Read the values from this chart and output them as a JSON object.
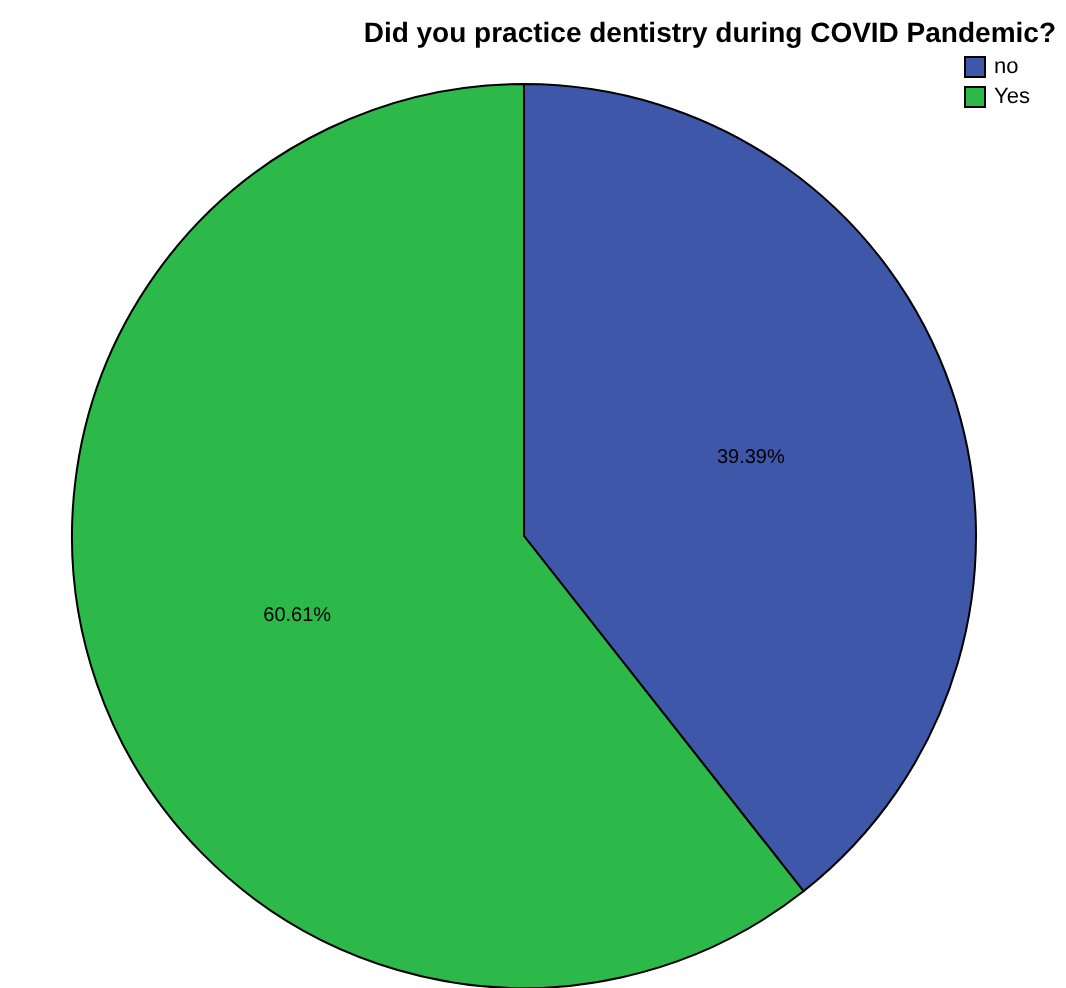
{
  "chart_data": {
    "type": "pie",
    "title": "Did you practice dentistry during COVID Pandemic?",
    "categories": [
      "no",
      "Yes"
    ],
    "values": [
      39.39,
      60.61
    ],
    "value_labels": [
      "39.39%",
      "60.61%"
    ],
    "colors": [
      "#3f57a8",
      "#2db84a"
    ],
    "legend": "top right"
  }
}
